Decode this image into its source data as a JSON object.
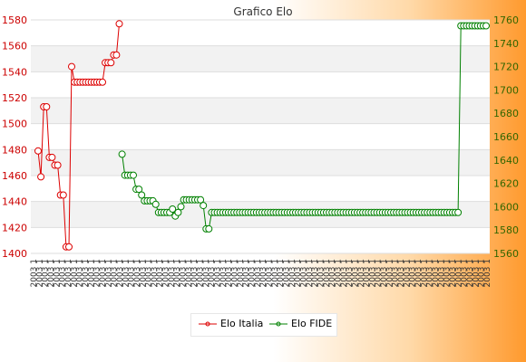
{
  "chart_data": {
    "type": "line",
    "title": "Grafico Elo",
    "y_left": {
      "min": 1400,
      "max": 1580,
      "step": 20,
      "color": "#cc0000"
    },
    "y_right": {
      "min": 1560,
      "max": 1760,
      "step": 20,
      "color": "#336600"
    },
    "x_tick_text": "2003 1",
    "x_tick_count": 80,
    "grid": true,
    "legend_position": "bottom",
    "series": [
      {
        "name": "Elo Italia",
        "axis": "left",
        "color": "#dd0000",
        "x": [
          0,
          1,
          2,
          3,
          4,
          5,
          6,
          7,
          8,
          9,
          10,
          11,
          12,
          13,
          14,
          15,
          16,
          17,
          18,
          19,
          20,
          21,
          22,
          23,
          24,
          25,
          26,
          27,
          28,
          29
        ],
        "values": [
          1479,
          1459,
          1513,
          1513,
          1474,
          1474,
          1468,
          1468,
          1445,
          1445,
          1405,
          1405,
          1544,
          1532,
          1532,
          1532,
          1532,
          1532,
          1532,
          1532,
          1532,
          1532,
          1532,
          1532,
          1547,
          1547,
          1547,
          1553,
          1553,
          1577
        ]
      },
      {
        "name": "Elo FIDE",
        "axis": "right",
        "color": "#008000",
        "x": [
          30,
          31,
          32,
          33,
          34,
          35,
          36,
          37,
          38,
          39,
          40,
          41,
          42,
          43,
          44,
          45,
          46,
          47,
          48,
          49,
          50,
          51,
          52,
          53,
          54,
          55,
          56,
          57,
          58,
          59,
          60,
          61,
          62,
          63,
          64,
          65,
          66,
          67,
          68,
          69,
          70,
          71,
          72,
          73,
          74,
          75,
          76,
          77,
          78,
          79,
          80,
          81,
          82,
          83,
          84,
          85,
          86,
          87,
          88,
          89,
          90,
          91,
          92,
          93,
          94,
          95,
          96,
          97,
          98,
          99,
          100,
          101,
          102,
          103,
          104,
          105,
          106,
          107,
          108,
          109,
          110,
          111,
          112,
          113,
          114,
          115,
          116,
          117,
          118,
          119,
          120,
          121,
          122,
          123,
          124,
          125,
          126,
          127,
          128,
          129,
          130,
          131,
          132,
          133,
          134,
          135,
          136,
          137,
          138,
          139,
          140,
          141,
          142,
          143,
          144,
          145,
          146,
          147,
          148,
          149
        ],
        "values": [
          1645,
          1627,
          1627,
          1627,
          1627,
          1615,
          1615,
          1610,
          1605,
          1605,
          1605,
          1605,
          1602,
          1595,
          1595,
          1595,
          1595,
          1595,
          1598,
          1592,
          1595,
          1600,
          1606,
          1606,
          1606,
          1606,
          1606,
          1606,
          1606,
          1601,
          1581,
          1581,
          1595,
          1595,
          1595,
          1595,
          1595,
          1595,
          1595,
          1595,
          1595,
          1595,
          1595,
          1595,
          1595,
          1595,
          1595,
          1595,
          1595,
          1595,
          1595,
          1595,
          1595,
          1595,
          1595,
          1595,
          1595,
          1595,
          1595,
          1595,
          1595,
          1595,
          1595,
          1595,
          1595,
          1595,
          1595,
          1595,
          1595,
          1595,
          1595,
          1595,
          1595,
          1595,
          1595,
          1595,
          1595,
          1595,
          1595,
          1595,
          1595,
          1595,
          1595,
          1595,
          1595,
          1595,
          1595,
          1595,
          1595,
          1595,
          1595,
          1595,
          1595,
          1595,
          1595,
          1595,
          1595,
          1595,
          1595,
          1595,
          1595,
          1595,
          1595,
          1595,
          1595,
          1595,
          1595,
          1595,
          1595,
          1595,
          1595,
          1595,
          1595,
          1595,
          1595,
          1595,
          1595,
          1595,
          1595,
          1595
        ]
      },
      {
        "name": "Elo FIDE",
        "axis": "right",
        "color": "#008000",
        "x": [
          150,
          151,
          152,
          153,
          154,
          155,
          156,
          157,
          158,
          159,
          160
        ],
        "values": [
          1595,
          1755,
          1755,
          1755,
          1755,
          1755,
          1755,
          1755,
          1755,
          1755,
          1755
        ]
      }
    ]
  },
  "legend": {
    "italia": "Elo Italia",
    "fide": "Elo FIDE"
  }
}
